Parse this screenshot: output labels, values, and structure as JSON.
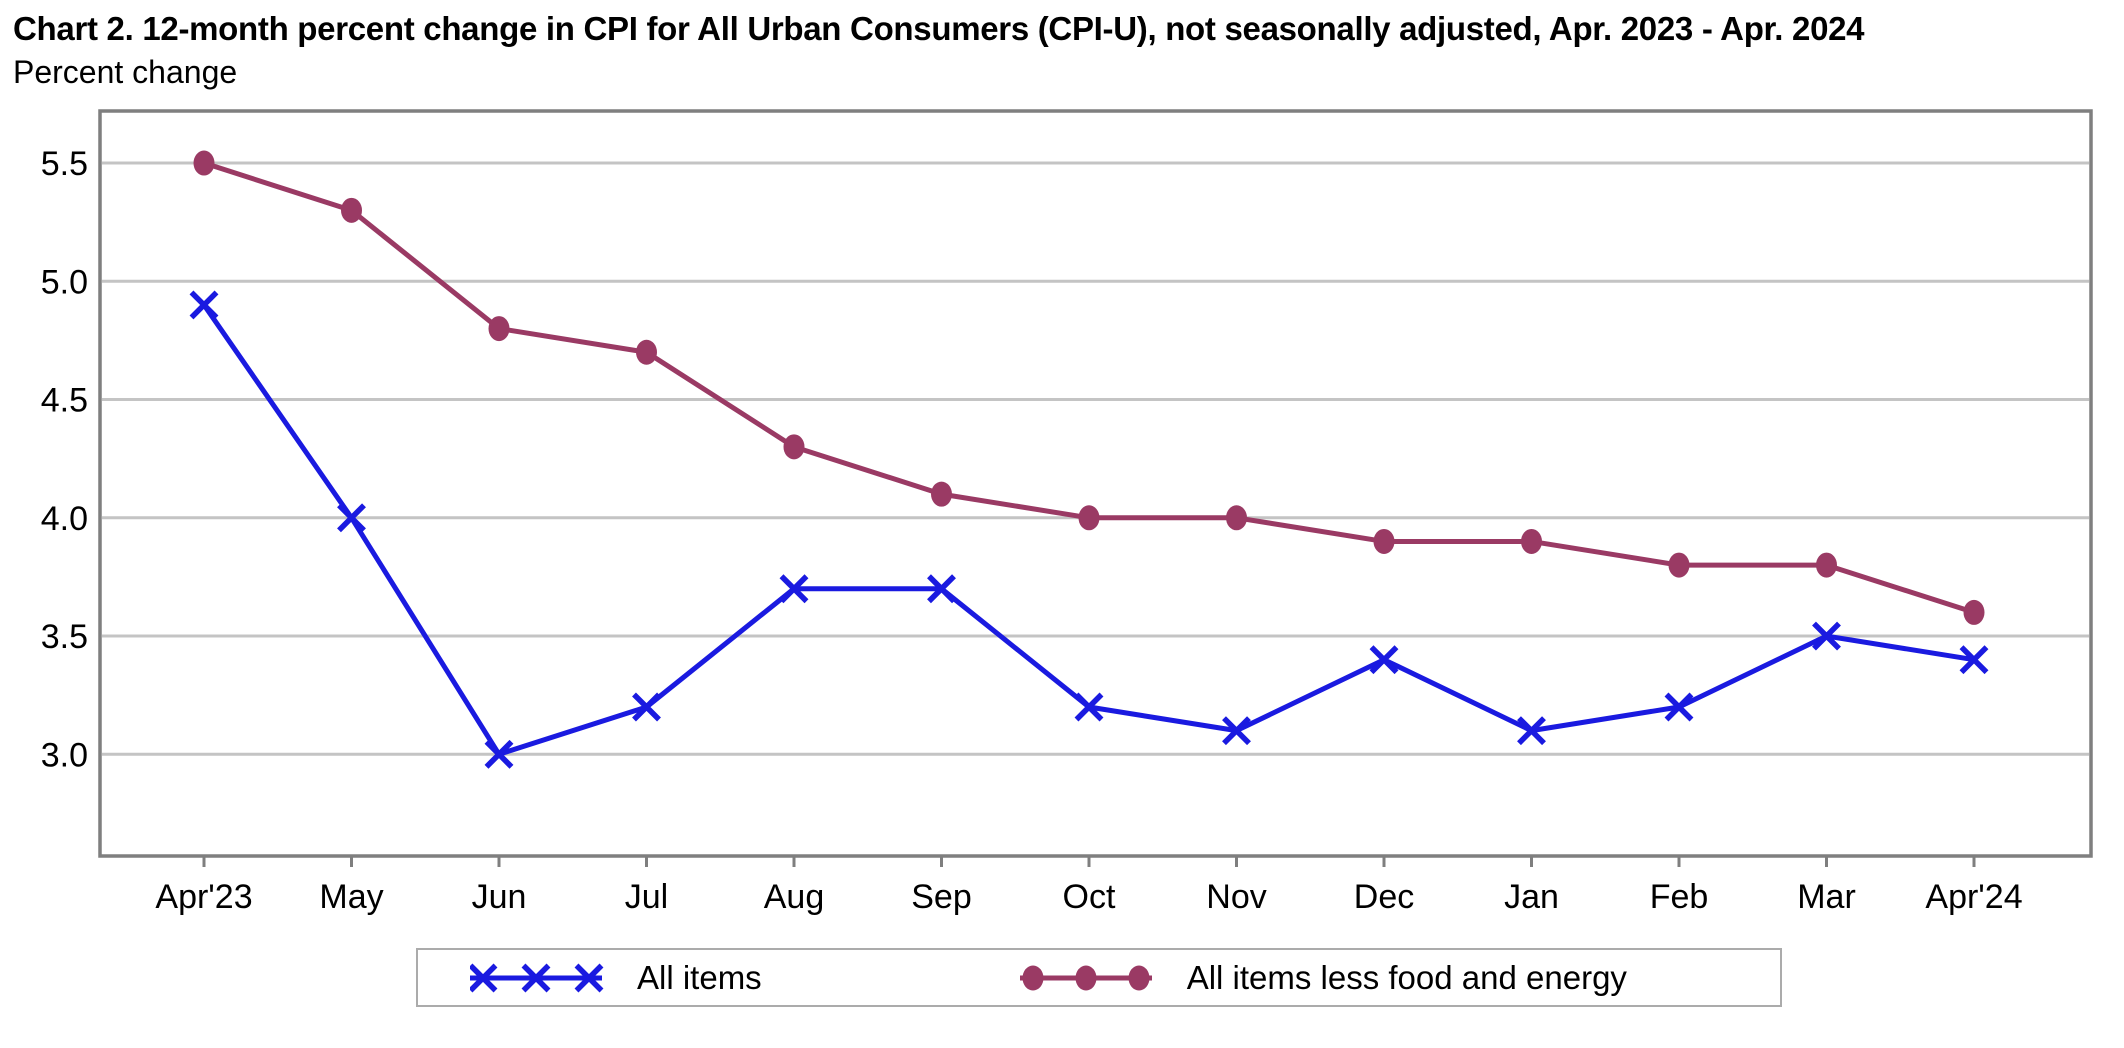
{
  "chart_data": {
    "type": "line",
    "title": "Chart 2. 12-month percent change in CPI for All Urban Consumers (CPI-U), not seasonally adjusted, Apr. 2023 - Apr. 2024",
    "ylabel": "Percent change",
    "xlabel": "",
    "categories": [
      "Apr'23",
      "May",
      "Jun",
      "Jul",
      "Aug",
      "Sep",
      "Oct",
      "Nov",
      "Dec",
      "Jan",
      "Feb",
      "Mar",
      "Apr'24"
    ],
    "series": [
      {
        "name": "All items",
        "color": "#1a1ae0",
        "marker": "x",
        "values": [
          4.9,
          4.0,
          3.0,
          3.2,
          3.7,
          3.7,
          3.2,
          3.1,
          3.4,
          3.1,
          3.2,
          3.5,
          3.4
        ]
      },
      {
        "name": "All items less food and energy",
        "color": "#9a3a64",
        "marker": "dot",
        "values": [
          5.5,
          5.3,
          4.8,
          4.7,
          4.3,
          4.1,
          4.0,
          4.0,
          3.9,
          3.9,
          3.8,
          3.8,
          3.6
        ]
      }
    ],
    "yticks": [
      5.5,
      5.0,
      4.5,
      4.0,
      3.5,
      3.0
    ],
    "ylim": [
      2.57,
      5.72
    ],
    "grid": "horizontal",
    "legend_position": "bottom-center",
    "colors": {
      "gridline": "#c4c4c4",
      "frame": "#7f7f7f",
      "text": "#000000",
      "background": "#ffffff"
    }
  }
}
